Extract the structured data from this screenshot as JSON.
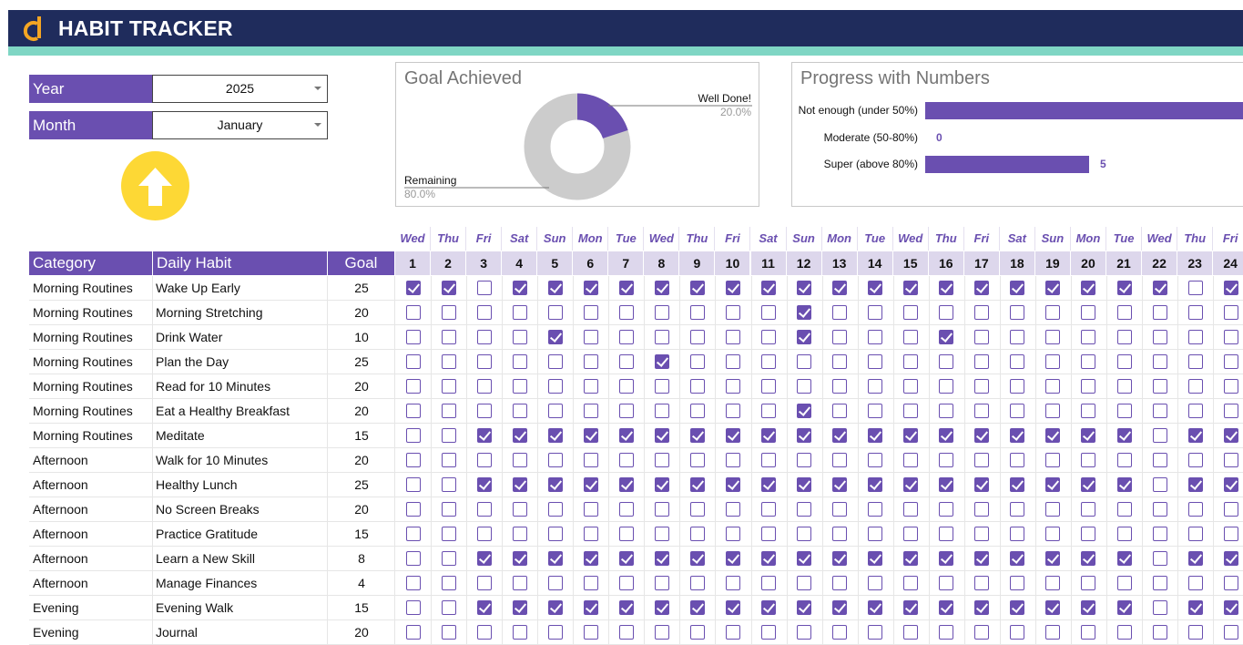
{
  "header": {
    "title": "HABIT TRACKER",
    "logo_icon": "d-logo-icon"
  },
  "controls": {
    "year_label": "Year",
    "year_value": "2025",
    "month_label": "Month",
    "month_value": "January",
    "up_icon": "arrow-up-icon"
  },
  "goal_card": {
    "title": "Goal Achieved",
    "achieved_label": "Well Done!",
    "achieved_pct": "20.0%",
    "remaining_label": "Remaining",
    "remaining_pct": "80.0%",
    "achieved_fraction": 0.2,
    "colors": {
      "achieved": "#6a4fb0",
      "remaining": "#cccccc"
    }
  },
  "progress_card": {
    "title": "Progress with Numbers",
    "bars": [
      {
        "label": "Not enough (under 50%)",
        "value": 10,
        "value_text": ""
      },
      {
        "label": "Moderate (50-80%)",
        "value": 0,
        "value_text": "0"
      },
      {
        "label": "Super (above 80%)",
        "value": 5,
        "value_text": "5"
      }
    ],
    "max_value": 10
  },
  "table": {
    "headers": {
      "category": "Category",
      "habit": "Daily Habit",
      "goal": "Goal"
    },
    "day_names": [
      "Wed",
      "Thu",
      "Fri",
      "Sat",
      "Sun",
      "Mon",
      "Tue",
      "Wed",
      "Thu",
      "Fri",
      "Sat",
      "Sun",
      "Mon",
      "Tue",
      "Wed",
      "Thu",
      "Fri",
      "Sat",
      "Sun",
      "Mon",
      "Tue",
      "Wed",
      "Thu",
      "Fri"
    ],
    "day_numbers": [
      "1",
      "2",
      "3",
      "4",
      "5",
      "6",
      "7",
      "8",
      "9",
      "10",
      "11",
      "12",
      "13",
      "14",
      "15",
      "16",
      "17",
      "18",
      "19",
      "20",
      "21",
      "22",
      "23",
      "24"
    ],
    "rows": [
      {
        "category": "Morning Routines",
        "habit": "Wake Up Early",
        "goal": "25",
        "checks": [
          1,
          1,
          0,
          1,
          1,
          1,
          1,
          1,
          1,
          1,
          1,
          1,
          1,
          1,
          1,
          1,
          1,
          1,
          1,
          1,
          1,
          1,
          0,
          1
        ]
      },
      {
        "category": "Morning Routines",
        "habit": "Morning Stretching",
        "goal": "20",
        "checks": [
          0,
          0,
          0,
          0,
          0,
          0,
          0,
          0,
          0,
          0,
          0,
          1,
          0,
          0,
          0,
          0,
          0,
          0,
          0,
          0,
          0,
          0,
          0,
          0
        ]
      },
      {
        "category": "Morning Routines",
        "habit": "Drink Water",
        "goal": "10",
        "checks": [
          0,
          0,
          0,
          0,
          1,
          0,
          0,
          0,
          0,
          0,
          0,
          1,
          0,
          0,
          0,
          1,
          0,
          0,
          0,
          0,
          0,
          0,
          0,
          0
        ]
      },
      {
        "category": "Morning Routines",
        "habit": "Plan the Day",
        "goal": "25",
        "checks": [
          0,
          0,
          0,
          0,
          0,
          0,
          0,
          1,
          0,
          0,
          0,
          0,
          0,
          0,
          0,
          0,
          0,
          0,
          0,
          0,
          0,
          0,
          0,
          0
        ]
      },
      {
        "category": "Morning Routines",
        "habit": "Read for 10 Minutes",
        "goal": "20",
        "checks": [
          0,
          0,
          0,
          0,
          0,
          0,
          0,
          0,
          0,
          0,
          0,
          0,
          0,
          0,
          0,
          0,
          0,
          0,
          0,
          0,
          0,
          0,
          0,
          0
        ]
      },
      {
        "category": "Morning Routines",
        "habit": "Eat a Healthy Breakfast",
        "goal": "20",
        "checks": [
          0,
          0,
          0,
          0,
          0,
          0,
          0,
          0,
          0,
          0,
          0,
          1,
          0,
          0,
          0,
          0,
          0,
          0,
          0,
          0,
          0,
          0,
          0,
          0
        ]
      },
      {
        "category": "Morning Routines",
        "habit": "Meditate",
        "goal": "15",
        "checks": [
          0,
          0,
          1,
          1,
          1,
          1,
          1,
          1,
          1,
          1,
          1,
          1,
          1,
          1,
          1,
          1,
          1,
          1,
          1,
          1,
          1,
          0,
          1,
          1
        ]
      },
      {
        "category": "Afternoon",
        "habit": "Walk for 10 Minutes",
        "goal": "20",
        "checks": [
          0,
          0,
          0,
          0,
          0,
          0,
          0,
          0,
          0,
          0,
          0,
          0,
          0,
          0,
          0,
          0,
          0,
          0,
          0,
          0,
          0,
          0,
          0,
          0
        ]
      },
      {
        "category": "Afternoon",
        "habit": "Healthy Lunch",
        "goal": "25",
        "checks": [
          0,
          0,
          1,
          1,
          1,
          1,
          1,
          1,
          1,
          1,
          1,
          1,
          1,
          1,
          1,
          1,
          1,
          1,
          1,
          1,
          1,
          0,
          1,
          1
        ]
      },
      {
        "category": "Afternoon",
        "habit": "No Screen Breaks",
        "goal": "20",
        "checks": [
          0,
          0,
          0,
          0,
          0,
          0,
          0,
          0,
          0,
          0,
          0,
          0,
          0,
          0,
          0,
          0,
          0,
          0,
          0,
          0,
          0,
          0,
          0,
          0
        ]
      },
      {
        "category": "Afternoon",
        "habit": "Practice Gratitude",
        "goal": "15",
        "checks": [
          0,
          0,
          0,
          0,
          0,
          0,
          0,
          0,
          0,
          0,
          0,
          0,
          0,
          0,
          0,
          0,
          0,
          0,
          0,
          0,
          0,
          0,
          0,
          0
        ]
      },
      {
        "category": "Afternoon",
        "habit": "Learn a New Skill",
        "goal": "8",
        "checks": [
          0,
          0,
          1,
          1,
          1,
          1,
          1,
          1,
          1,
          1,
          1,
          1,
          1,
          1,
          1,
          1,
          1,
          1,
          1,
          1,
          1,
          0,
          1,
          1
        ]
      },
      {
        "category": "Afternoon",
        "habit": "Manage Finances",
        "goal": "4",
        "checks": [
          0,
          0,
          0,
          0,
          0,
          0,
          0,
          0,
          0,
          0,
          0,
          0,
          0,
          0,
          0,
          0,
          0,
          0,
          0,
          0,
          0,
          0,
          0,
          0
        ]
      },
      {
        "category": "Evening",
        "habit": "Evening Walk",
        "goal": "15",
        "checks": [
          0,
          0,
          1,
          1,
          1,
          1,
          1,
          1,
          1,
          1,
          1,
          1,
          1,
          1,
          1,
          1,
          1,
          1,
          1,
          1,
          1,
          0,
          1,
          1
        ]
      },
      {
        "category": "Evening",
        "habit": "Journal",
        "goal": "20",
        "checks": [
          0,
          0,
          0,
          0,
          0,
          0,
          0,
          0,
          0,
          0,
          0,
          0,
          0,
          0,
          0,
          0,
          0,
          0,
          0,
          0,
          0,
          0,
          0,
          0
        ]
      }
    ]
  }
}
